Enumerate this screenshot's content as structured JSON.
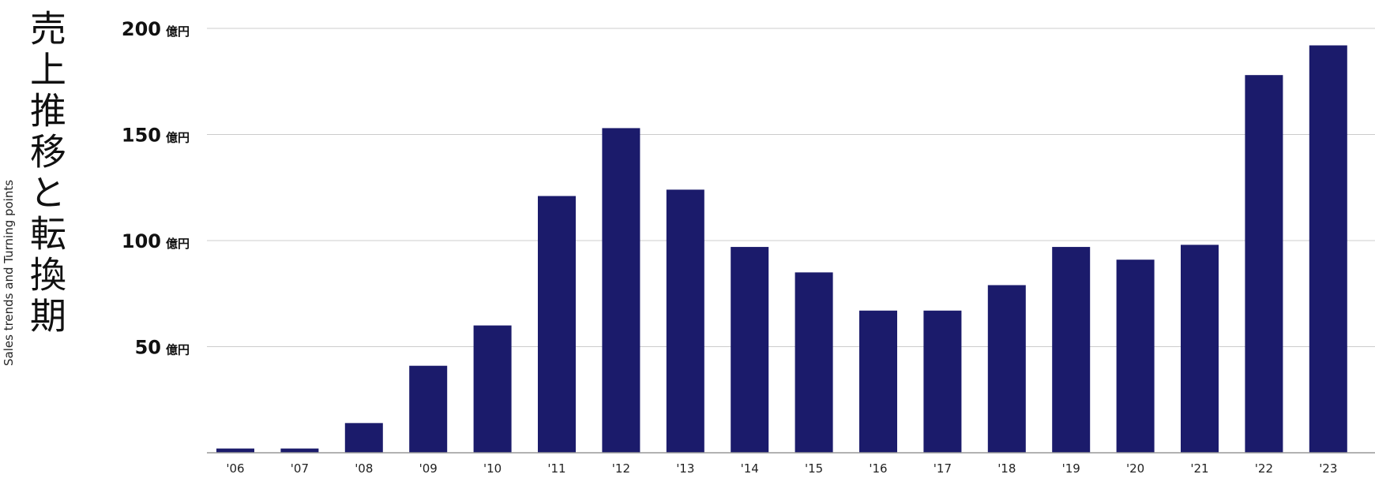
{
  "title": "売上推移と転換期",
  "subtitle": "Sales trends and Turning points",
  "y_unit": "億円",
  "colors": {
    "bar": "#1b1b6b",
    "grid": "#cccccc",
    "axis": "#999999"
  },
  "chart_data": {
    "type": "bar",
    "categories": [
      "'06",
      "'07",
      "'08",
      "'09",
      "'10",
      "'11",
      "'12",
      "'13",
      "'14",
      "'15",
      "'16",
      "'17",
      "'18",
      "'19",
      "'20",
      "'21",
      "'22",
      "'23"
    ],
    "values": [
      2,
      2,
      14,
      41,
      60,
      121,
      153,
      124,
      97,
      85,
      67,
      67,
      79,
      97,
      91,
      98,
      178,
      192
    ],
    "ylim": [
      0,
      200
    ],
    "yticks": [
      50,
      100,
      150,
      200
    ],
    "grid": true
  }
}
